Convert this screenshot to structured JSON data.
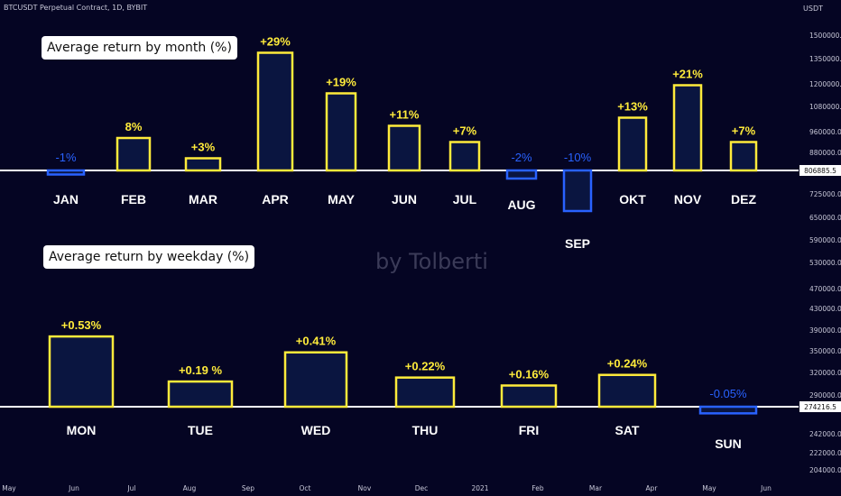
{
  "header": {
    "symbol": "BTCUSDT Perpetual Contract, 1D, BYBIT",
    "currency": "USDT"
  },
  "watermark": "by Tolberti",
  "colors": {
    "background": "#050523",
    "positive": "#ffeb3b",
    "negative": "#2962ff",
    "bar_fill": "#0a1540",
    "baseline": "#ffffff",
    "axis_text": "#c8c8d8"
  },
  "price_axis": {
    "ticks": [
      "1500000.0",
      "1350000.0",
      "1200000.0",
      "1080000.0",
      "960000.0",
      "880000.0",
      "725000.0",
      "650000.0",
      "590000.0",
      "530000.0",
      "470000.0",
      "430000.0",
      "390000.0",
      "350000.0",
      "320000.0",
      "290000.0",
      "242000.0",
      "222000.0",
      "204000.0"
    ],
    "price_labels": [
      "806885.5",
      "274216.5"
    ]
  },
  "time_axis": {
    "labels": [
      "May",
      "Jun",
      "Jul",
      "Aug",
      "Sep",
      "Oct",
      "Nov",
      "Dec",
      "2021",
      "Feb",
      "Mar",
      "Apr",
      "May",
      "Jun"
    ]
  },
  "chart_data": [
    {
      "type": "bar",
      "title": "Average return by month (%)",
      "categories": [
        "JAN",
        "FEB",
        "MAR",
        "APR",
        "MAY",
        "JUN",
        "JUL",
        "AUG",
        "SEP",
        "OKT",
        "NOV",
        "DEZ"
      ],
      "values": [
        -1,
        8,
        3,
        29,
        19,
        11,
        7,
        -2,
        -10,
        13,
        21,
        7
      ],
      "value_labels": [
        "-1%",
        "8%",
        "+3%",
        "+29%",
        "+19%",
        "+11%",
        "+7%",
        "-2%",
        "-10%",
        "+13%",
        "+21%",
        "+7%"
      ]
    },
    {
      "type": "bar",
      "title": "Average return by weekday (%)",
      "categories": [
        "MON",
        "TUE",
        "WED",
        "THU",
        "FRI",
        "SAT",
        "SUN"
      ],
      "values": [
        0.53,
        0.19,
        0.41,
        0.22,
        0.16,
        0.24,
        -0.05
      ],
      "value_labels": [
        "+0.53%",
        "+0.19 %",
        "+0.41%",
        "+0.22%",
        "+0.16%",
        "+0.24%",
        "-0.05%"
      ]
    }
  ]
}
